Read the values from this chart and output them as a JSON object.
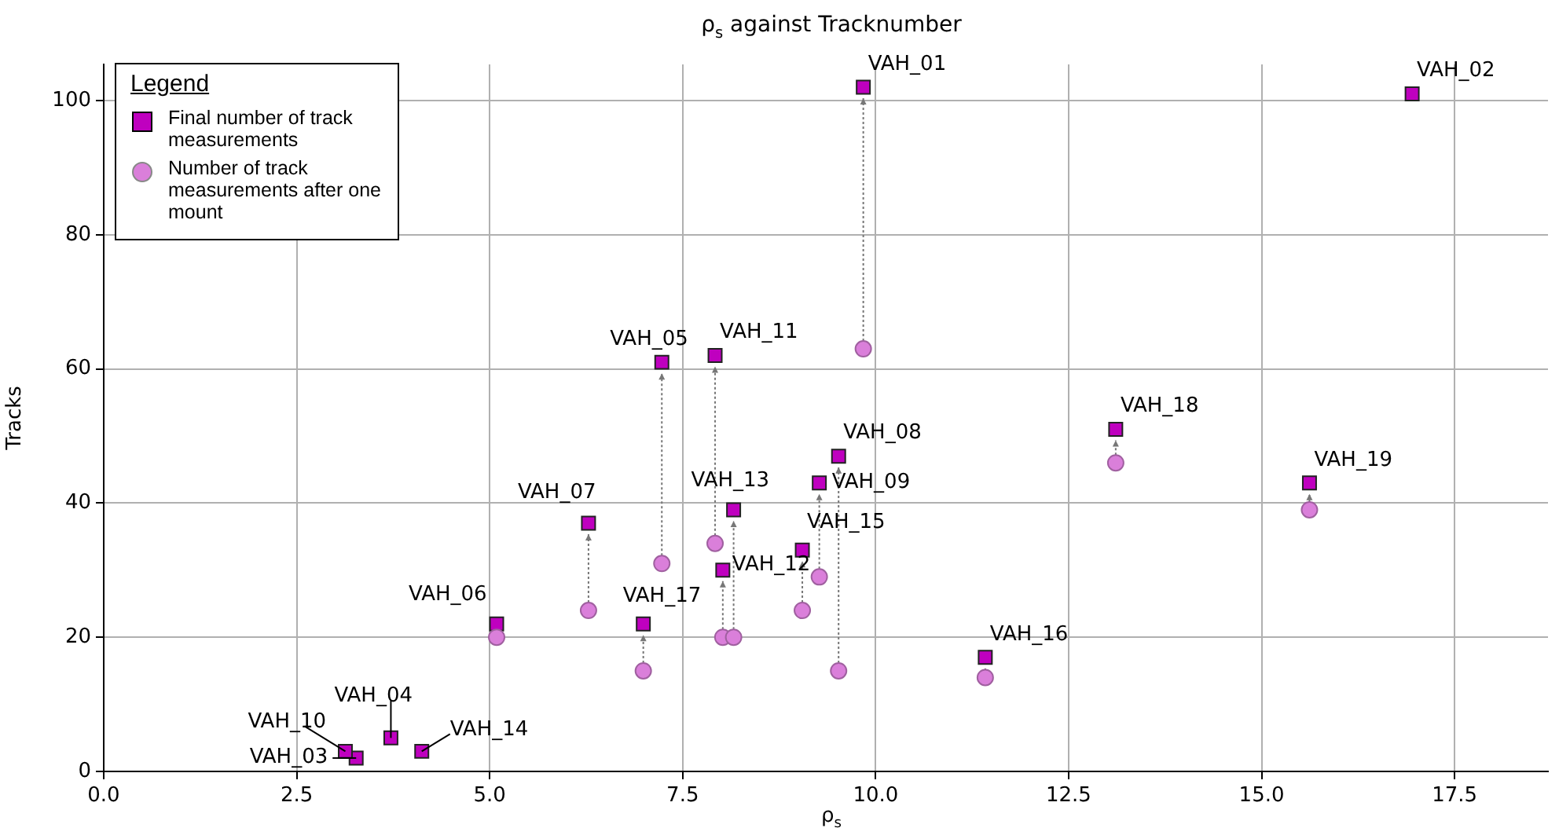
{
  "chart_data": {
    "type": "scatter",
    "title": "ρ$_{s}$ against Tracknumber",
    "xlabel": "ρ$_{s}$",
    "ylabel": "Tracks",
    "legend_title": "Legend",
    "legend": "top left",
    "grid": true,
    "x": [
      9.84,
      16.95,
      3.27,
      3.72,
      7.23,
      5.09,
      6.28,
      9.52,
      9.27,
      3.13,
      7.92,
      8.02,
      8.16,
      4.12,
      9.05,
      11.42,
      6.99,
      13.11,
      15.62
    ],
    "series": [
      {
        "name": "Final number of track measurements",
        "color": "#bf00bf",
        "marker": "square",
        "values": [
          102,
          101,
          2,
          5,
          61,
          22,
          37,
          47,
          43,
          3,
          62,
          30,
          39,
          3,
          33,
          17,
          22,
          51,
          43
        ]
      },
      {
        "name": "Number of track measurements after one mount",
        "color": "#da7fda",
        "marker": "circle",
        "values": [
          63,
          null,
          null,
          null,
          31,
          20,
          24,
          15,
          29,
          null,
          34,
          20,
          20,
          null,
          24,
          14,
          15,
          46,
          39
        ]
      }
    ],
    "annotations": [
      {
        "text": "VAH_01",
        "x": 9.84,
        "y": 102
      },
      {
        "text": "VAH_02",
        "x": 16.95,
        "y": 101
      },
      {
        "text": "VAH_03",
        "x": 3.27,
        "y": 2
      },
      {
        "text": "VAH_04",
        "x": 3.72,
        "y": 5
      },
      {
        "text": "VAH_05",
        "x": 7.23,
        "y": 61
      },
      {
        "text": "VAH_06",
        "x": 5.09,
        "y": 22
      },
      {
        "text": "VAH_07",
        "x": 6.28,
        "y": 37
      },
      {
        "text": "VAH_08",
        "x": 9.52,
        "y": 47
      },
      {
        "text": "VAH_09",
        "x": 9.27,
        "y": 43
      },
      {
        "text": "VAH_10",
        "x": 3.13,
        "y": 3
      },
      {
        "text": "VAH_11",
        "x": 7.92,
        "y": 62
      },
      {
        "text": "VAH_12",
        "x": 8.02,
        "y": 30
      },
      {
        "text": "VAH_13",
        "x": 8.16,
        "y": 39
      },
      {
        "text": "VAH_14",
        "x": 4.12,
        "y": 3
      },
      {
        "text": "VAH_15",
        "x": 9.05,
        "y": 33
      },
      {
        "text": "VAH_16",
        "x": 11.42,
        "y": 17
      },
      {
        "text": "VAH_17",
        "x": 6.99,
        "y": 22
      },
      {
        "text": "VAH_18",
        "x": 13.11,
        "y": 51
      },
      {
        "text": "VAH_19",
        "x": 15.62,
        "y": 43
      }
    ],
    "xlim": [
      0,
      18.71
    ],
    "xticks": [
      {
        "value": 0,
        "label": "0.0"
      },
      2.5,
      {
        "value": 5,
        "label": "5.0"
      },
      7.5,
      {
        "value": 10,
        "label": "10.0"
      },
      12.5,
      {
        "value": 15,
        "label": "15.0"
      },
      17.5
    ],
    "ylim": [
      0,
      105.4
    ],
    "yticks": [
      0,
      20,
      40,
      60,
      80,
      100
    ]
  }
}
